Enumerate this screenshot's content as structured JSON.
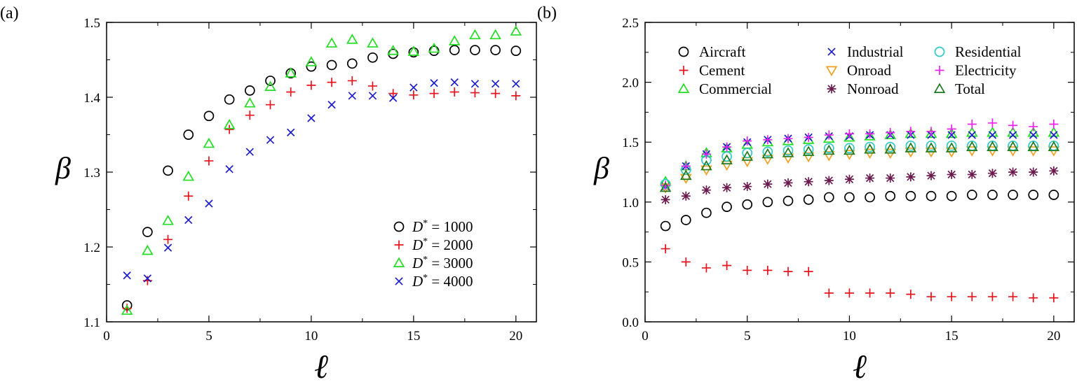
{
  "chart_data": [
    {
      "type": "scatter",
      "panel_label": "(a)",
      "xlabel": "ℓ",
      "ylabel": "β",
      "xlim": [
        0,
        21
      ],
      "ylim": [
        1.1,
        1.5
      ],
      "xticks": [
        0,
        5,
        10,
        15,
        20
      ],
      "yticks": [
        1.1,
        1.2,
        1.3,
        1.4,
        1.5
      ],
      "ytick_labels": [
        "1.1",
        "1.2",
        "1.3",
        "1.4",
        "1.5"
      ],
      "grid": false,
      "legend_position": "bottom-right",
      "x": [
        1,
        2,
        3,
        4,
        5,
        6,
        7,
        8,
        9,
        10,
        11,
        12,
        13,
        14,
        15,
        16,
        17,
        18,
        19,
        20
      ],
      "series": [
        {
          "name": "D* = 1000",
          "legend_prefix": "D",
          "legend_sup": "*",
          "legend_suffix": " = 1000",
          "marker": "circle",
          "color": "#000000",
          "values": [
            1.122,
            1.22,
            1.302,
            1.35,
            1.375,
            1.397,
            1.409,
            1.422,
            1.432,
            1.441,
            1.443,
            1.445,
            1.453,
            1.458,
            1.46,
            1.462,
            1.463,
            1.463,
            1.463,
            1.462
          ]
        },
        {
          "name": "D* = 2000",
          "legend_prefix": "D",
          "legend_sup": "*",
          "legend_suffix": " = 2000",
          "marker": "plus",
          "color": "#e8141c",
          "values": [
            1.118,
            1.155,
            1.21,
            1.268,
            1.315,
            1.357,
            1.376,
            1.39,
            1.407,
            1.416,
            1.42,
            1.422,
            1.415,
            1.405,
            1.403,
            1.405,
            1.407,
            1.406,
            1.405,
            1.402
          ]
        },
        {
          "name": "D* = 3000",
          "legend_prefix": "D",
          "legend_sup": "*",
          "legend_suffix": " = 3000",
          "marker": "triangle-up",
          "color": "#22dd22",
          "values": [
            1.115,
            1.195,
            1.235,
            1.294,
            1.338,
            1.363,
            1.392,
            1.414,
            1.432,
            1.447,
            1.472,
            1.477,
            1.472,
            1.462,
            1.461,
            1.465,
            1.475,
            1.483,
            1.483,
            1.488
          ]
        },
        {
          "name": "D* = 4000",
          "legend_prefix": "D",
          "legend_sup": "*",
          "legend_suffix": " = 4000",
          "marker": "x",
          "color": "#1c1ccc",
          "values": [
            1.162,
            1.158,
            1.199,
            1.236,
            1.258,
            1.304,
            1.327,
            1.343,
            1.353,
            1.372,
            1.39,
            1.402,
            1.402,
            1.399,
            1.413,
            1.419,
            1.42,
            1.418,
            1.418,
            1.418
          ]
        }
      ]
    },
    {
      "type": "scatter",
      "panel_label": "(b)",
      "xlabel": "ℓ",
      "ylabel": "β",
      "xlim": [
        0,
        21
      ],
      "ylim": [
        0.0,
        2.5
      ],
      "xticks": [
        0,
        5,
        10,
        15,
        20
      ],
      "yticks": [
        0.0,
        0.5,
        1.0,
        1.5,
        2.0,
        2.5
      ],
      "ytick_labels": [
        "0.0",
        "0.5",
        "1.0",
        "1.5",
        "2.0",
        "2.5"
      ],
      "grid": false,
      "legend_position": "top",
      "x": [
        1,
        2,
        3,
        4,
        5,
        6,
        7,
        8,
        9,
        10,
        11,
        12,
        13,
        14,
        15,
        16,
        17,
        18,
        19,
        20
      ],
      "series": [
        {
          "name": "Aircraft",
          "marker": "circle",
          "color": "#000000",
          "values": [
            0.8,
            0.85,
            0.91,
            0.96,
            0.98,
            1.0,
            1.01,
            1.02,
            1.04,
            1.04,
            1.04,
            1.05,
            1.05,
            1.05,
            1.05,
            1.06,
            1.06,
            1.06,
            1.06,
            1.06
          ]
        },
        {
          "name": "Cement",
          "marker": "plus",
          "color": "#e8141c",
          "values": [
            0.61,
            0.5,
            0.45,
            0.47,
            0.43,
            0.43,
            0.42,
            0.42,
            0.24,
            0.24,
            0.24,
            0.24,
            0.23,
            0.21,
            0.21,
            0.21,
            0.21,
            0.21,
            0.2,
            0.2
          ]
        },
        {
          "name": "Commercial",
          "marker": "triangle-up",
          "color": "#22dd22",
          "values": [
            1.17,
            1.3,
            1.41,
            1.45,
            1.48,
            1.5,
            1.51,
            1.52,
            1.53,
            1.54,
            1.55,
            1.56,
            1.57,
            1.57,
            1.57,
            1.58,
            1.58,
            1.58,
            1.58,
            1.58
          ]
        },
        {
          "name": "Industrial",
          "marker": "x",
          "color": "#1c1ccc",
          "values": [
            1.13,
            1.3,
            1.4,
            1.46,
            1.5,
            1.52,
            1.53,
            1.54,
            1.55,
            1.55,
            1.56,
            1.56,
            1.56,
            1.56,
            1.56,
            1.56,
            1.56,
            1.56,
            1.56,
            1.56
          ]
        },
        {
          "name": "Onroad",
          "marker": "triangle-down",
          "color": "#f0a020",
          "values": [
            1.12,
            1.2,
            1.27,
            1.31,
            1.34,
            1.36,
            1.37,
            1.38,
            1.39,
            1.4,
            1.41,
            1.41,
            1.42,
            1.42,
            1.42,
            1.43,
            1.43,
            1.43,
            1.43,
            1.43
          ]
        },
        {
          "name": "Nonroad",
          "marker": "asterisk",
          "color": "#6b1a4e",
          "values": [
            1.02,
            1.05,
            1.1,
            1.12,
            1.13,
            1.15,
            1.16,
            1.17,
            1.18,
            1.19,
            1.2,
            1.2,
            1.21,
            1.22,
            1.23,
            1.23,
            1.24,
            1.25,
            1.25,
            1.26
          ]
        },
        {
          "name": "Residential",
          "marker": "circle",
          "color": "#30c8c8",
          "values": [
            1.15,
            1.27,
            1.35,
            1.38,
            1.41,
            1.42,
            1.43,
            1.44,
            1.45,
            1.45,
            1.46,
            1.46,
            1.47,
            1.47,
            1.47,
            1.47,
            1.47,
            1.47,
            1.47,
            1.47
          ]
        },
        {
          "name": "Electricity",
          "marker": "plus",
          "color": "#ee22ee",
          "values": [
            1.14,
            1.3,
            1.4,
            1.46,
            1.51,
            1.52,
            1.53,
            1.54,
            1.56,
            1.57,
            1.57,
            1.58,
            1.59,
            1.59,
            1.61,
            1.65,
            1.66,
            1.64,
            1.63,
            1.65
          ]
        },
        {
          "name": "Total",
          "marker": "triangle-up",
          "color": "#1f7a1f",
          "values": [
            1.12,
            1.22,
            1.3,
            1.35,
            1.38,
            1.4,
            1.41,
            1.42,
            1.43,
            1.43,
            1.44,
            1.44,
            1.45,
            1.45,
            1.45,
            1.46,
            1.46,
            1.46,
            1.46,
            1.46
          ]
        }
      ]
    }
  ]
}
